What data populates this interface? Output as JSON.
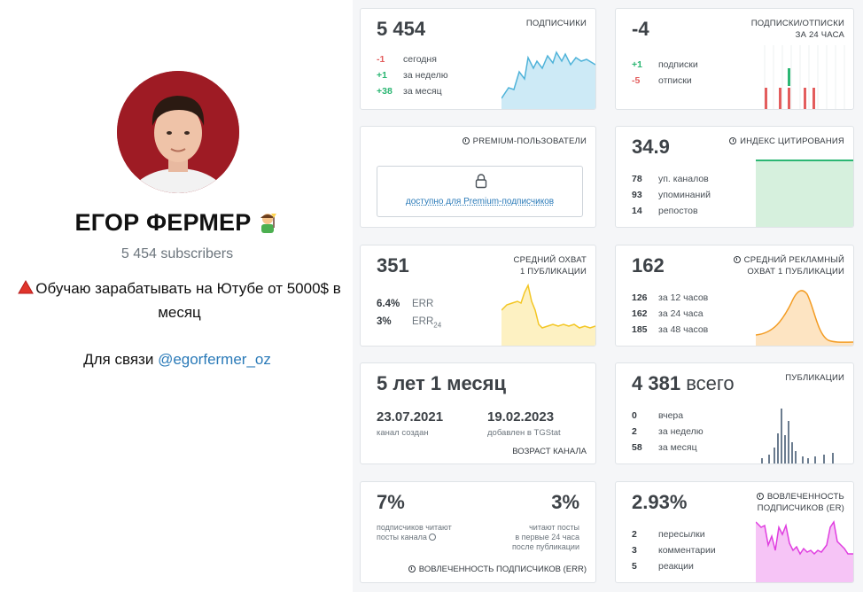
{
  "channel": {
    "name": "ЕГОР ФЕРМЕР",
    "subscribers_text": "5 454 subscribers",
    "description": "Обучаю зарабатывать на Ютубе от 5000$ в месяц",
    "contact_prefix": "Для связи",
    "contact_handle": "@egorfermer_oz"
  },
  "subscribers": {
    "value": "5 454",
    "label": "подписчики",
    "rows": [
      {
        "value": "-1",
        "text": "сегодня"
      },
      {
        "value": "+1",
        "text": "за неделю"
      },
      {
        "value": "+38",
        "text": "за месяц"
      }
    ]
  },
  "subs_unsubs": {
    "value": "-4",
    "label_line1": "подписки/отписки",
    "label_line2": "за 24 часа",
    "rows": [
      {
        "value": "+1",
        "text": "подписки"
      },
      {
        "value": "-5",
        "text": "отписки"
      }
    ]
  },
  "premium": {
    "label": "premium-пользователи",
    "link": "доступно для Premium-подписчиков"
  },
  "citation": {
    "value": "34.9",
    "label": "индекс цитирования",
    "rows": [
      {
        "value": "78",
        "text": "уп. каналов"
      },
      {
        "value": "93",
        "text": "упоминаний"
      },
      {
        "value": "14",
        "text": "репостов"
      }
    ]
  },
  "reach": {
    "value": "351",
    "label_line1": "средний охват",
    "label_line2": "1 публикации",
    "rows": [
      {
        "value": "6.4%",
        "text": "ERR"
      },
      {
        "value": "3%",
        "text": "ERR",
        "sub": "24"
      }
    ]
  },
  "ad_reach": {
    "value": "162",
    "label_line1": "средний рекламный",
    "label_line2": "охват 1 публикации",
    "rows": [
      {
        "value": "126",
        "text": "за 12 часов"
      },
      {
        "value": "162",
        "text": "за 24 часа"
      },
      {
        "value": "185",
        "text": "за 48 часов"
      }
    ]
  },
  "age": {
    "value": "5 лет 1 месяц",
    "created_date": "23.07.2021",
    "created_label": "канал создан",
    "added_date": "19.02.2023",
    "added_label": "добавлен в TGStat",
    "label": "возраст канала"
  },
  "posts": {
    "value": "4 381",
    "value_suffix": "всего",
    "label": "публикации",
    "rows": [
      {
        "value": "0",
        "text": "вчера"
      },
      {
        "value": "2",
        "text": "за неделю"
      },
      {
        "value": "58",
        "text": "за месяц"
      }
    ]
  },
  "err": {
    "left_value": "7%",
    "left_text_line1": "подписчиков читают",
    "left_text_line2": "посты канала",
    "right_value": "3%",
    "right_text_line1": "читают посты",
    "right_text_line2": "в первые 24 часа",
    "right_text_line3": "после публикации",
    "label": "вовлеченность подписчиков (ERR)"
  },
  "er": {
    "value": "2.93%",
    "label_line1": "вовлеченность",
    "label_line2": "подписчиков (ER)",
    "rows": [
      {
        "value": "2",
        "text": "пересылки"
      },
      {
        "value": "3",
        "text": "комментарии"
      },
      {
        "value": "5",
        "text": "реакции"
      }
    ]
  },
  "colors": {
    "blue_line": "#4fb3d9",
    "blue_fill": "#cdeaf6",
    "green": "#2bb673",
    "red": "#e35d5d",
    "yellow_line": "#f3c623",
    "yellow_fill": "#fdf1c2",
    "orange_line": "#f39c23",
    "orange_fill": "#fde4c2",
    "magenta_line": "#e03ee0",
    "magenta_fill": "#f6c4f6",
    "bars": "#6b7c8f"
  }
}
